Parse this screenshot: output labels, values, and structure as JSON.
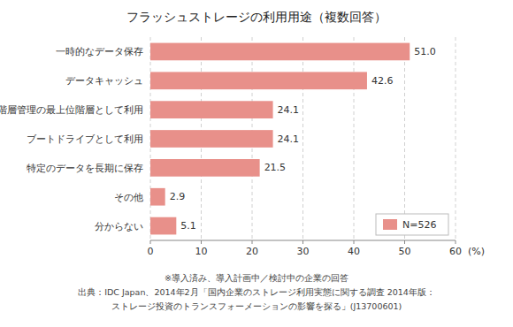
{
  "chart_data": {
    "type": "bar",
    "orientation": "horizontal",
    "title": "フラッシュストレージの利用用途（複数回答）",
    "categories": [
      "分からない",
      "その他",
      "特定のデータを長期に保存",
      "ブートドライブとして利用",
      "階層管理の最上位階層として利用",
      "データキャッシュ",
      "一時的なデータ保存"
    ],
    "series": [
      {
        "name": "N=526",
        "color": "#E8908A",
        "values": [
          5.1,
          2.9,
          21.5,
          24.1,
          24.1,
          42.6,
          51.0
        ],
        "value_labels": [
          "5.1",
          "2.9",
          "21.5",
          "24.1",
          "24.1",
          "42.6",
          "51.0"
        ]
      }
    ],
    "xlim": [
      0,
      60
    ],
    "xticks": [
      0,
      10,
      20,
      30,
      40,
      50,
      60
    ],
    "xlabel": "(%)",
    "grid": true,
    "legend": "lower right",
    "data_labels": true,
    "annotations": [
      "※導入済み、導入計画中／検討中の企業の回答",
      "出典：IDC Japan、2014年2月「国内企業のストレージ利用実態に関する調査 2014年版：",
      "ストレージ投資のトランスフォーメーションの影響を探る」(J13700601)"
    ]
  }
}
